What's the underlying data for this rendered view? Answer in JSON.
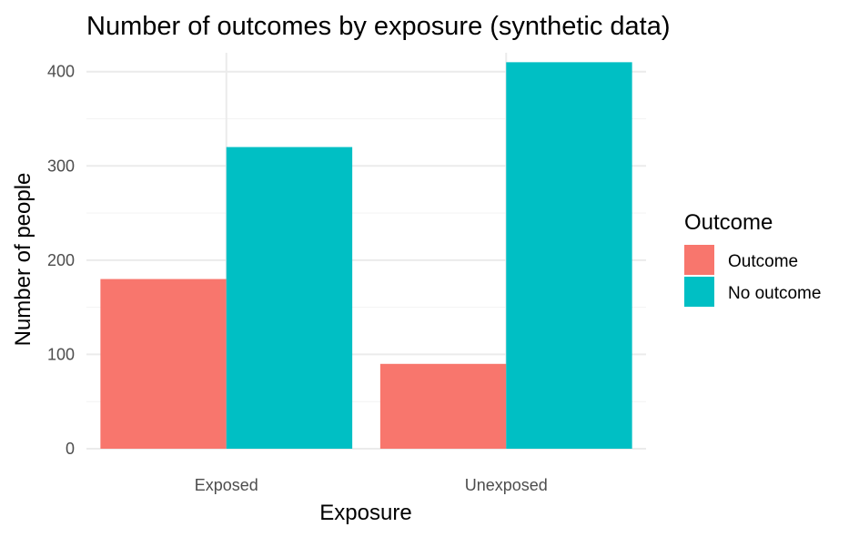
{
  "chart_data": {
    "type": "bar",
    "title": "Number of outcomes by exposure (synthetic data)",
    "xlabel": "Exposure",
    "ylabel": "Number of people",
    "categories": [
      "Exposed",
      "Unexposed"
    ],
    "series": [
      {
        "name": "Outcome",
        "color": "#F8766D",
        "values": [
          180,
          90
        ]
      },
      {
        "name": "No outcome",
        "color": "#00BFC4",
        "values": [
          320,
          410
        ]
      }
    ],
    "yticks": [
      0,
      100,
      200,
      300,
      400
    ],
    "ylim": [
      0,
      420
    ],
    "grid": true,
    "legend": {
      "title": "Outcome",
      "position": "right"
    }
  }
}
